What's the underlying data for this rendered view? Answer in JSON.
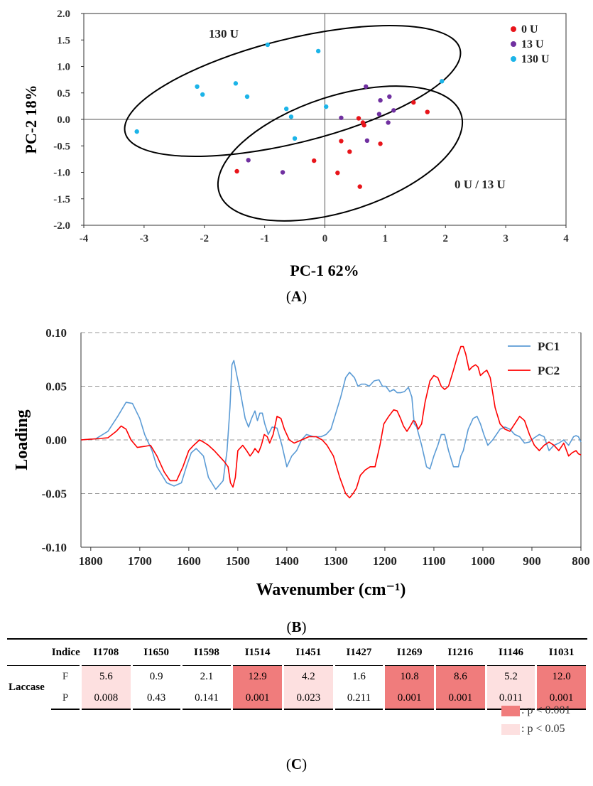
{
  "panel_labels": [
    "A",
    "B",
    "C"
  ],
  "colors": {
    "red": "#e8141a",
    "purple": "#7030a0",
    "cyan": "#1cb4e8",
    "pc1": "#5b9bd5",
    "pc2": "#ff0000",
    "strong": "#f07c7c",
    "weak": "#fde0e0"
  },
  "chart_data": [
    {
      "type": "scatter",
      "xlabel": "PC-1 62%",
      "ylabel": "PC-2 18%",
      "xlim": [
        -4,
        4
      ],
      "ylim": [
        -2.0,
        2.0
      ],
      "xticks": [
        "-4",
        "-3",
        "-2",
        "-1",
        "0",
        "1",
        "2",
        "3",
        "4"
      ],
      "yticks": [
        "2.0",
        "1.5",
        "1.0",
        "0.5",
        "0.0",
        "-0.5",
        "-1.0",
        "-1.5",
        "-2.0"
      ],
      "legend_position": "top-right",
      "annotations": [
        "130 U",
        "0 U / 13 U"
      ],
      "series": [
        {
          "name": "0 U",
          "color": "#e8141a",
          "points": [
            [
              -1.46,
              -0.98
            ],
            [
              -0.18,
              -0.78
            ],
            [
              0.21,
              -1.01
            ],
            [
              0.27,
              -0.41
            ],
            [
              0.41,
              -0.61
            ],
            [
              0.56,
              0.02
            ],
            [
              0.58,
              -1.27
            ],
            [
              0.63,
              -0.06
            ],
            [
              0.65,
              -0.11
            ],
            [
              0.92,
              -0.46
            ],
            [
              1.47,
              0.32
            ],
            [
              1.7,
              0.14
            ]
          ]
        },
        {
          "name": "13 U",
          "color": "#7030a0",
          "points": [
            [
              -1.27,
              -0.77
            ],
            [
              -0.7,
              -1.0
            ],
            [
              0.27,
              0.03
            ],
            [
              0.68,
              0.62
            ],
            [
              0.7,
              -0.4
            ],
            [
              0.9,
              0.1
            ],
            [
              0.92,
              0.36
            ],
            [
              1.05,
              -0.06
            ],
            [
              1.07,
              0.43
            ],
            [
              1.14,
              0.17
            ]
          ]
        },
        {
          "name": "130 U",
          "color": "#1cb4e8",
          "points": [
            [
              -3.12,
              -0.23
            ],
            [
              -2.12,
              0.62
            ],
            [
              -2.03,
              0.47
            ],
            [
              -1.48,
              0.68
            ],
            [
              -1.29,
              0.43
            ],
            [
              -0.95,
              1.41
            ],
            [
              -0.64,
              0.2
            ],
            [
              -0.56,
              0.05
            ],
            [
              -0.5,
              -0.36
            ],
            [
              -0.11,
              1.29
            ],
            [
              0.02,
              0.24
            ],
            [
              1.94,
              0.72
            ]
          ]
        }
      ]
    },
    {
      "type": "line",
      "xlabel": "Wavenumber (cm⁻¹)",
      "ylabel": "Loading",
      "xlim": [
        1820,
        800
      ],
      "ylim": [
        -0.1,
        0.1
      ],
      "xticks": [
        "1800",
        "1700",
        "1600",
        "1500",
        "1400",
        "1300",
        "1200",
        "1100",
        "1000",
        "900",
        "800"
      ],
      "yticks": [
        "0.10",
        "0.05",
        "0.00",
        "-0.05",
        "-0.10"
      ],
      "legend_position": "top-right",
      "series": [
        {
          "name": "PC1",
          "color": "#5b9bd5",
          "x": [
            1820,
            1790,
            1765,
            1745,
            1728,
            1715,
            1700,
            1690,
            1675,
            1665,
            1645,
            1630,
            1615,
            1605,
            1595,
            1585,
            1570,
            1560,
            1545,
            1530,
            1522,
            1516,
            1512,
            1508,
            1502,
            1495,
            1485,
            1478,
            1472,
            1465,
            1460,
            1455,
            1450,
            1445,
            1438,
            1430,
            1420,
            1410,
            1400,
            1390,
            1380,
            1370,
            1360,
            1345,
            1330,
            1320,
            1310,
            1300,
            1290,
            1280,
            1272,
            1262,
            1255,
            1248,
            1240,
            1232,
            1222,
            1212,
            1205,
            1198,
            1190,
            1182,
            1175,
            1168,
            1160,
            1152,
            1145,
            1140,
            1135,
            1125,
            1115,
            1108,
            1100,
            1092,
            1085,
            1078,
            1070,
            1060,
            1050,
            1045,
            1040,
            1030,
            1020,
            1012,
            1005,
            998,
            990,
            980,
            965,
            955,
            945,
            935,
            925,
            915,
            905,
            895,
            885,
            875,
            865,
            855,
            845,
            835,
            825,
            815,
            810,
            805,
            800
          ],
          "y": [
            0,
            0.001,
            0.008,
            0.022,
            0.035,
            0.034,
            0.02,
            0.005,
            -0.01,
            -0.025,
            -0.04,
            -0.043,
            -0.04,
            -0.025,
            -0.012,
            -0.008,
            -0.015,
            -0.035,
            -0.046,
            -0.038,
            -0.01,
            0.03,
            0.07,
            0.074,
            0.06,
            0.045,
            0.02,
            0.012,
            0.02,
            0.027,
            0.018,
            0.025,
            0.025,
            0.015,
            0.005,
            0.012,
            0.011,
            -0.005,
            -0.025,
            -0.015,
            -0.01,
            0,
            0.005,
            0.003,
            0.003,
            0.005,
            0.01,
            0.025,
            0.04,
            0.058,
            0.063,
            0.058,
            0.05,
            0.052,
            0.052,
            0.05,
            0.055,
            0.056,
            0.05,
            0.05,
            0.045,
            0.047,
            0.044,
            0.044,
            0.045,
            0.049,
            0.04,
            0.015,
            0.012,
            -0.005,
            -0.025,
            -0.027,
            -0.015,
            -0.005,
            0.005,
            0.005,
            -0.01,
            -0.025,
            -0.025,
            -0.015,
            -0.01,
            0.01,
            0.02,
            0.022,
            0.015,
            0.005,
            -0.005,
            0,
            0.01,
            0.012,
            0.01,
            0.005,
            0.003,
            -0.003,
            -0.002,
            0.002,
            0.005,
            0.003,
            -0.01,
            -0.005,
            -0.003,
            0,
            -0.005,
            0.003,
            0.004,
            0.003,
            -0.002
          ]
        },
        {
          "name": "PC2",
          "color": "#ff0000",
          "x": [
            1820,
            1790,
            1765,
            1748,
            1738,
            1728,
            1718,
            1705,
            1690,
            1678,
            1665,
            1650,
            1638,
            1625,
            1612,
            1600,
            1590,
            1578,
            1570,
            1560,
            1548,
            1538,
            1528,
            1520,
            1515,
            1510,
            1505,
            1500,
            1490,
            1482,
            1475,
            1470,
            1465,
            1458,
            1452,
            1446,
            1440,
            1435,
            1428,
            1420,
            1412,
            1405,
            1395,
            1385,
            1370,
            1355,
            1340,
            1328,
            1318,
            1305,
            1292,
            1280,
            1272,
            1265,
            1258,
            1250,
            1240,
            1230,
            1220,
            1210,
            1202,
            1192,
            1182,
            1175,
            1168,
            1162,
            1155,
            1148,
            1142,
            1138,
            1132,
            1125,
            1118,
            1108,
            1100,
            1092,
            1085,
            1078,
            1070,
            1060,
            1052,
            1045,
            1040,
            1035,
            1028,
            1022,
            1015,
            1010,
            1005,
            998,
            992,
            985,
            975,
            965,
            955,
            945,
            935,
            925,
            915,
            905,
            895,
            885,
            875,
            865,
            855,
            845,
            835,
            825,
            818,
            810,
            805,
            800
          ],
          "y": [
            0,
            0.001,
            0.002,
            0.008,
            0.013,
            0.01,
            0,
            -0.007,
            -0.006,
            -0.005,
            -0.015,
            -0.03,
            -0.038,
            -0.038,
            -0.025,
            -0.01,
            -0.005,
            0,
            -0.002,
            -0.005,
            -0.01,
            -0.015,
            -0.02,
            -0.025,
            -0.04,
            -0.044,
            -0.035,
            -0.01,
            -0.005,
            -0.01,
            -0.015,
            -0.012,
            -0.008,
            -0.012,
            -0.005,
            0.005,
            0.003,
            -0.003,
            0.005,
            0.022,
            0.02,
            0.01,
            0,
            -0.003,
            0,
            0.003,
            0.003,
            0,
            -0.005,
            -0.015,
            -0.035,
            -0.05,
            -0.054,
            -0.05,
            -0.045,
            -0.033,
            -0.028,
            -0.025,
            -0.025,
            -0.005,
            0.015,
            0.022,
            0.028,
            0.027,
            0.02,
            0.013,
            0.008,
            0.013,
            0.018,
            0.017,
            0.01,
            0.015,
            0.035,
            0.055,
            0.06,
            0.058,
            0.05,
            0.047,
            0.05,
            0.065,
            0.078,
            0.087,
            0.087,
            0.08,
            0.065,
            0.068,
            0.07,
            0.068,
            0.06,
            0.063,
            0.065,
            0.058,
            0.03,
            0.015,
            0.01,
            0.008,
            0.015,
            0.022,
            0.018,
            0.005,
            -0.005,
            -0.01,
            -0.005,
            -0.002,
            -0.005,
            -0.01,
            -0.003,
            -0.015,
            -0.012,
            -0.01,
            -0.013,
            -0.014
          ]
        }
      ]
    },
    {
      "type": "table",
      "header": [
        "",
        "Indice",
        "I1708",
        "I1650",
        "I1598",
        "I1514",
        "I1451",
        "I1427",
        "I1269",
        "I1216",
        "I1146",
        "I1031"
      ],
      "group_label": "Laccase",
      "rows": [
        {
          "stat": "F",
          "values": [
            "5.6",
            "0.9",
            "2.1",
            "12.9",
            "4.2",
            "1.6",
            "10.8",
            "8.6",
            "5.2",
            "12.0"
          ]
        },
        {
          "stat": "P",
          "values": [
            "0.008",
            "0.43",
            "0.141",
            "0.001",
            "0.023",
            "0.211",
            "0.001",
            "0.001",
            "0.011",
            "0.001"
          ]
        }
      ],
      "significance": [
        "weak",
        "none",
        "none",
        "strong",
        "weak",
        "none",
        "strong",
        "strong",
        "weak",
        "strong"
      ],
      "legend": [
        {
          "label": ": p < 0.001",
          "level": "strong"
        },
        {
          "label": ": p < 0.05",
          "level": "weak"
        }
      ]
    }
  ]
}
